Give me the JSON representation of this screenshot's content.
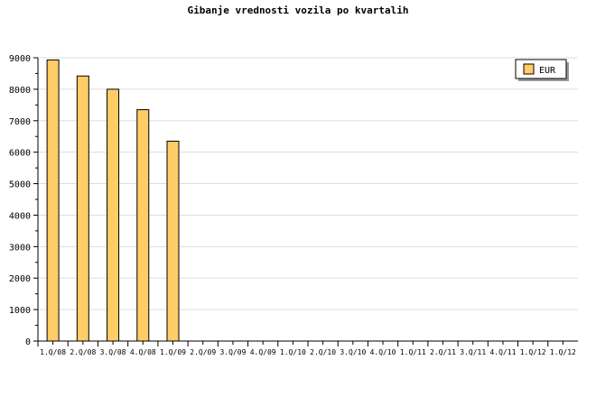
{
  "chart_data": {
    "type": "bar",
    "title": "Gibanje vrednosti vozila po kvartalih",
    "xlabel": "",
    "ylabel": "",
    "categories": [
      "1.Q/08",
      "2.Q/08",
      "3.Q/08",
      "4.Q/08",
      "1.Q/09",
      "2.Q/09",
      "3.Q/09",
      "4.Q/09",
      "1.Q/10",
      "2.Q/10",
      "3.Q/10",
      "4.Q/10",
      "1.Q/11",
      "2.Q/11",
      "3.Q/11",
      "4.Q/11",
      "1.Q/12",
      "1.Q/12"
    ],
    "series": [
      {
        "name": "EUR",
        "values": [
          8930,
          8420,
          8000,
          7350,
          6350,
          null,
          null,
          null,
          null,
          null,
          null,
          null,
          null,
          null,
          null,
          null,
          null,
          null
        ],
        "color": "#FFCC66"
      }
    ],
    "ylim": [
      0,
      9000
    ],
    "yticks": [
      0,
      1000,
      2000,
      3000,
      4000,
      5000,
      6000,
      7000,
      8000,
      9000
    ],
    "grid": true,
    "legend": "top-right"
  }
}
